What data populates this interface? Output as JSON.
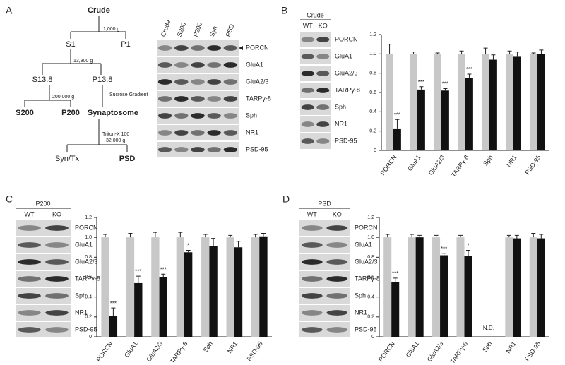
{
  "panels": [
    "A",
    "B",
    "C",
    "D"
  ],
  "diagram": {
    "root": "Crude",
    "spin1": "1,000 g",
    "s1": "S1",
    "p1": "P1",
    "spin2": "13,800 g",
    "s13": "S13.8",
    "p13": "P13.8",
    "spin3": "200,000 g",
    "sucrose": "Sucrose Gradient",
    "s200": "S200",
    "p200": "P200",
    "synaptosome": "Synaptosome",
    "triton": "Triton-X 100",
    "spin4": "32,000 g",
    "syntx": "Syn/Tx",
    "psd": "PSD"
  },
  "fraction_blot": {
    "lanes": [
      "Crude",
      "S200",
      "P200",
      "Syn",
      "PSD"
    ],
    "rows": [
      "PORCN",
      "GluA1",
      "GluA2/3",
      "TARPγ-8",
      "Sph",
      "NR1",
      "PSD-95"
    ]
  },
  "blots": [
    {
      "title": "Crude",
      "rows": [
        "PORCN",
        "GluA1",
        "GluA2/3",
        "TARPγ-8",
        "Sph",
        "NR1",
        "PSD-95"
      ]
    },
    {
      "title": "P200",
      "rows": [
        "PORCN",
        "GluA1",
        "GluA2/3",
        "TARPγ-8",
        "Sph",
        "NR1",
        "PSD-95"
      ]
    },
    {
      "title": "PSD",
      "rows": [
        "PORCN",
        "GluA1",
        "GluA2/3",
        "TARPγ-8",
        "Sph",
        "NR1",
        "PSD-95"
      ]
    }
  ],
  "chart_data": [
    {
      "type": "bar",
      "categories": [
        "PORCN",
        "GluA1",
        "GluA2/3",
        "TARPγ-8",
        "Sph",
        "NR1",
        "PSD-95"
      ],
      "series": [
        {
          "name": "WT",
          "color": "#c8c8c8",
          "values": [
            1,
            1,
            1,
            1,
            1,
            1,
            1
          ],
          "errors": [
            0.1,
            0.02,
            0.01,
            0.03,
            0.06,
            0.03,
            0.01
          ]
        },
        {
          "name": "KO",
          "color": "#111111",
          "values": [
            0.22,
            0.63,
            0.62,
            0.75,
            0.94,
            0.97,
            1.0
          ],
          "errors": [
            0.1,
            0.03,
            0.02,
            0.04,
            0.05,
            0.05,
            0.04
          ]
        }
      ],
      "annotations": [
        "***",
        "***",
        "***",
        "***",
        null,
        null,
        null
      ],
      "ylim": [
        0,
        1.2
      ],
      "yticks": [
        0,
        0.2,
        0.4,
        0.6,
        0.8,
        {
          "value": 1,
          "label": "1.0"
        },
        1.2
      ]
    },
    {
      "type": "bar",
      "categories": [
        "PORCN",
        "GluA1",
        "GluA2/3",
        "TARPγ-8",
        "Sph",
        "NR1",
        "PSD-95"
      ],
      "series": [
        {
          "name": "WT",
          "color": "#c8c8c8",
          "values": [
            1,
            1,
            1,
            1,
            1,
            1,
            1
          ],
          "errors": [
            0.03,
            0.04,
            0.05,
            0.05,
            0.03,
            0.02,
            0.03
          ]
        },
        {
          "name": "KO",
          "color": "#111111",
          "values": [
            0.21,
            0.54,
            0.6,
            0.85,
            0.91,
            0.9,
            1.01
          ],
          "errors": [
            0.08,
            0.07,
            0.03,
            0.02,
            0.08,
            0.06,
            0.03
          ]
        }
      ],
      "annotations": [
        "***",
        "***",
        "***",
        "*",
        null,
        null,
        null
      ],
      "ylim": [
        0,
        1.2
      ],
      "yticks": [
        0,
        0.2,
        0.4,
        0.6,
        0.8,
        {
          "value": 1,
          "label": "1.0"
        },
        1.2
      ]
    },
    {
      "type": "bar",
      "categories": [
        "PORCN",
        "GluA1",
        "GluA2/3",
        "TARPγ-8",
        "Sph",
        "NR1",
        "PSD-95"
      ],
      "series": [
        {
          "name": "WT",
          "color": "#c8c8c8",
          "values": [
            1,
            1,
            1,
            1,
            null,
            1,
            1
          ],
          "errors": [
            0.03,
            0.03,
            0.02,
            0.02,
            null,
            0.02,
            0.04
          ]
        },
        {
          "name": "KO",
          "color": "#111111",
          "values": [
            0.55,
            1.0,
            0.82,
            0.81,
            null,
            0.99,
            0.99
          ],
          "errors": [
            0.04,
            0.02,
            0.02,
            0.06,
            null,
            0.03,
            0.04
          ]
        }
      ],
      "annotations": [
        "***",
        null,
        "***",
        "*",
        "N.D.",
        null,
        null
      ],
      "ylim": [
        0,
        1.2
      ],
      "yticks": [
        0,
        0.2,
        0.4,
        0.6,
        0.8,
        {
          "value": 1,
          "label": "1.0"
        },
        1.2
      ]
    }
  ]
}
